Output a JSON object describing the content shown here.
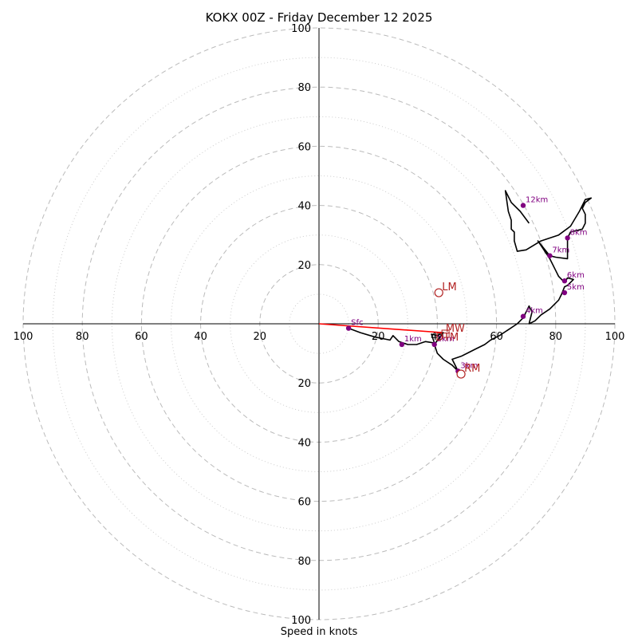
{
  "chart_data": {
    "type": "hodograph",
    "title": "KOKX 00Z - Friday December 12 2025",
    "xlabel": "Speed in knots",
    "speed_max": 100,
    "major_rings": [
      20,
      40,
      60,
      80,
      100
    ],
    "minor_rings": [
      10,
      30,
      50,
      70,
      90
    ],
    "axis_ticks": {
      "top": [
        "100",
        "80",
        "60",
        "40",
        "20"
      ],
      "left": [
        "100",
        "80",
        "60",
        "40",
        "20"
      ],
      "right": [
        "20",
        "40",
        "60",
        "80",
        "100"
      ],
      "bottom": [
        "20",
        "40",
        "60",
        "80",
        "100"
      ]
    },
    "profile_uv": [
      [
        10,
        -1.5
      ],
      [
        14,
        -3
      ],
      [
        19,
        -4.5
      ],
      [
        24,
        -5.5
      ],
      [
        25,
        -4
      ],
      [
        27,
        -6
      ],
      [
        30,
        -7
      ],
      [
        33,
        -7
      ],
      [
        36,
        -6
      ],
      [
        39,
        -6.5
      ],
      [
        38,
        -3.5
      ],
      [
        40,
        -4
      ],
      [
        42,
        -3
      ],
      [
        39,
        -7
      ],
      [
        40,
        -10
      ],
      [
        42,
        -12
      ],
      [
        45,
        -14
      ],
      [
        47,
        -16
      ],
      [
        46,
        -14
      ],
      [
        45,
        -12
      ],
      [
        48,
        -11
      ],
      [
        50,
        -10
      ],
      [
        53,
        -8.5
      ],
      [
        56,
        -7
      ],
      [
        58,
        -5.5
      ],
      [
        61,
        -4
      ],
      [
        64,
        -2
      ],
      [
        67,
        0
      ],
      [
        69,
        2
      ],
      [
        70,
        4
      ],
      [
        71,
        6
      ],
      [
        72,
        4
      ],
      [
        71,
        0
      ],
      [
        73,
        1
      ],
      [
        75,
        3
      ],
      [
        78,
        5
      ],
      [
        81,
        8
      ],
      [
        82,
        10
      ],
      [
        83,
        12.5
      ],
      [
        84,
        13
      ],
      [
        86,
        15
      ],
      [
        84,
        15.5
      ],
      [
        83,
        14
      ],
      [
        81,
        16
      ],
      [
        80,
        18
      ],
      [
        78,
        22
      ],
      [
        76,
        25
      ],
      [
        74,
        28
      ],
      [
        78,
        23
      ],
      [
        80,
        22.5
      ],
      [
        84,
        22
      ],
      [
        84,
        25
      ],
      [
        84,
        29
      ],
      [
        85,
        31
      ],
      [
        89,
        32
      ],
      [
        90,
        34
      ],
      [
        90,
        37
      ],
      [
        89,
        39
      ],
      [
        90,
        41
      ],
      [
        92,
        42.5
      ],
      [
        90,
        42
      ],
      [
        88,
        38
      ],
      [
        85,
        33
      ],
      [
        81,
        30
      ],
      [
        75,
        28
      ],
      [
        70,
        25
      ],
      [
        67,
        24.5
      ],
      [
        66,
        28
      ],
      [
        66,
        31
      ],
      [
        65,
        32
      ],
      [
        65,
        35
      ],
      [
        64,
        38
      ],
      [
        63,
        45
      ],
      [
        65,
        41
      ],
      [
        68,
        38
      ],
      [
        71,
        34
      ]
    ],
    "height_markers": [
      {
        "label": "Sfc",
        "u": 10,
        "v": -1.5
      },
      {
        "label": "1km",
        "u": 28,
        "v": -7
      },
      {
        "label": "2km",
        "u": 39,
        "v": -7
      },
      {
        "label": "3km",
        "u": 47,
        "v": -16
      },
      {
        "label": "4km",
        "u": 69,
        "v": 2.5
      },
      {
        "label": "5km",
        "u": 83,
        "v": 10.5
      },
      {
        "label": "6km",
        "u": 83,
        "v": 14.5
      },
      {
        "label": "7km",
        "u": 78,
        "v": 23
      },
      {
        "label": "8km",
        "u": 84,
        "v": 29
      },
      {
        "label": "12km",
        "u": 69,
        "v": 40
      }
    ],
    "motion_points": [
      {
        "label": "LM",
        "u": 40.5,
        "v": 10.5
      },
      {
        "label": "RM",
        "u": 48,
        "v": -17
      }
    ],
    "mean_wind": {
      "label": "MW",
      "u": 42,
      "v": -3
    },
    "deviant_tornado": {
      "label": "DTM",
      "u": 41,
      "v": -3.5
    },
    "colors": {
      "profile": "#000000",
      "markers": "#800080",
      "motion": "#b22222",
      "mean_wind_vector": "#ff0000",
      "grid_major": "#bbbbbb",
      "grid_minor": "#cccccc"
    }
  }
}
